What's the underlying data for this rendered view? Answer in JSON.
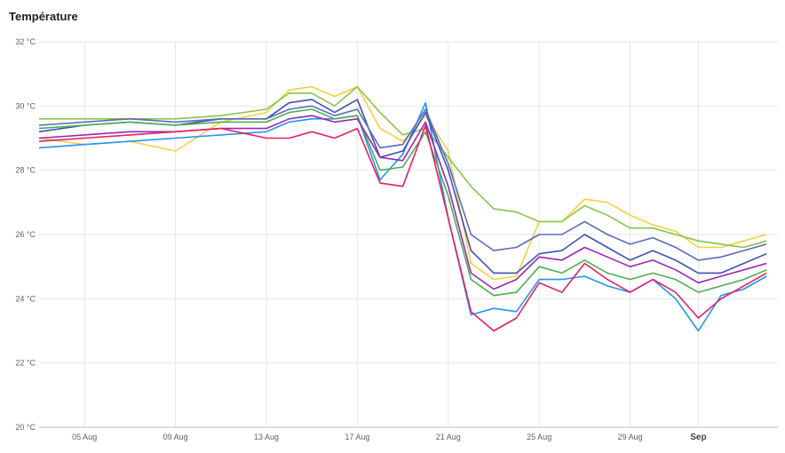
{
  "chart_data": {
    "type": "line",
    "title": "Température",
    "xlabel": "",
    "ylabel": "",
    "ylim": [
      20,
      32
    ],
    "y_ticks": [
      "20 °C",
      "22 °C",
      "24 °C",
      "26 °C",
      "28 °C",
      "30 °C",
      "32 °C"
    ],
    "x_ticks": [
      {
        "label": "05 Aug",
        "day": 5
      },
      {
        "label": "09 Aug",
        "day": 9
      },
      {
        "label": "13 Aug",
        "day": 13
      },
      {
        "label": "17 Aug",
        "day": 17
      },
      {
        "label": "21 Aug",
        "day": 21
      },
      {
        "label": "25 Aug",
        "day": 25
      },
      {
        "label": "29 Aug",
        "day": 29
      },
      {
        "label": "Sep",
        "day": 32,
        "bold": true
      }
    ],
    "xlim_days": [
      3.0,
      35.5
    ],
    "grid": true,
    "series": [
      {
        "color": "#f4d03f",
        "x": [
          3,
          5,
          7,
          9,
          11,
          13,
          14,
          15,
          16,
          17,
          18,
          19,
          20,
          21,
          22,
          23,
          24,
          25,
          26,
          27,
          28,
          29,
          30,
          31,
          32,
          33,
          34,
          35
        ],
        "y": [
          29.0,
          28.8,
          28.9,
          28.6,
          29.5,
          29.8,
          30.5,
          30.6,
          30.3,
          30.6,
          29.3,
          28.9,
          29.7,
          28.6,
          25.1,
          24.6,
          24.7,
          26.4,
          26.4,
          27.1,
          27.0,
          26.6,
          26.3,
          26.1,
          25.6,
          25.6,
          25.8,
          26.0
        ]
      },
      {
        "color": "#8bc34a",
        "x": [
          3,
          5,
          7,
          9,
          11,
          13,
          14,
          15,
          16,
          17,
          18,
          19,
          20,
          21,
          22,
          23,
          24,
          25,
          26,
          27,
          28,
          29,
          30,
          31,
          32,
          33,
          34,
          35
        ],
        "y": [
          29.6,
          29.6,
          29.6,
          29.6,
          29.7,
          29.9,
          30.4,
          30.4,
          30.0,
          30.6,
          29.8,
          29.1,
          29.3,
          28.4,
          27.5,
          26.8,
          26.7,
          26.4,
          26.4,
          26.9,
          26.6,
          26.2,
          26.2,
          26.0,
          25.8,
          25.7,
          25.6,
          25.8
        ]
      },
      {
        "color": "#2196f3",
        "x": [
          3,
          5,
          7,
          9,
          11,
          13,
          14,
          15,
          16,
          17,
          18,
          19,
          20,
          21,
          22,
          23,
          24,
          25,
          26,
          27,
          28,
          29,
          30,
          31,
          32,
          33,
          34,
          35
        ],
        "y": [
          28.7,
          28.8,
          28.9,
          29.0,
          29.1,
          29.2,
          29.5,
          29.6,
          29.6,
          29.7,
          27.7,
          28.5,
          30.1,
          26.5,
          23.5,
          23.7,
          23.6,
          24.6,
          24.6,
          24.7,
          24.4,
          24.2,
          24.6,
          24.0,
          23.0,
          24.1,
          24.3,
          24.7
        ]
      },
      {
        "color": "#3f51b5",
        "x": [
          3,
          5,
          7,
          9,
          11,
          13,
          14,
          15,
          16,
          17,
          18,
          19,
          20,
          21,
          22,
          23,
          24,
          25,
          26,
          27,
          28,
          29,
          30,
          31,
          32,
          33,
          34,
          35
        ],
        "y": [
          29.2,
          29.4,
          29.5,
          29.4,
          29.6,
          29.6,
          30.1,
          30.2,
          29.8,
          30.2,
          28.4,
          28.6,
          29.8,
          28.0,
          25.5,
          24.8,
          24.8,
          25.4,
          25.5,
          26.0,
          25.6,
          25.2,
          25.5,
          25.2,
          24.8,
          24.8,
          25.1,
          25.4
        ]
      },
      {
        "color": "#4caf50",
        "x": [
          3,
          5,
          7,
          9,
          11,
          13,
          14,
          15,
          16,
          17,
          18,
          19,
          20,
          21,
          22,
          23,
          24,
          25,
          26,
          27,
          28,
          29,
          30,
          31,
          32,
          33,
          34,
          35
        ],
        "y": [
          29.3,
          29.4,
          29.5,
          29.4,
          29.5,
          29.5,
          29.8,
          29.9,
          29.6,
          29.7,
          28.0,
          28.1,
          29.2,
          27.2,
          24.6,
          24.1,
          24.2,
          25.0,
          24.8,
          25.2,
          24.8,
          24.6,
          24.8,
          24.6,
          24.2,
          24.4,
          24.6,
          24.9
        ]
      },
      {
        "color": "#9c27b0",
        "x": [
          3,
          5,
          7,
          9,
          11,
          13,
          14,
          15,
          16,
          17,
          18,
          19,
          20,
          21,
          22,
          23,
          24,
          25,
          26,
          27,
          28,
          29,
          30,
          31,
          32,
          33,
          34,
          35
        ],
        "y": [
          29.0,
          29.1,
          29.2,
          29.2,
          29.3,
          29.3,
          29.6,
          29.7,
          29.5,
          29.6,
          28.4,
          28.3,
          29.5,
          27.5,
          24.8,
          24.3,
          24.6,
          25.3,
          25.2,
          25.6,
          25.3,
          25.0,
          25.2,
          24.9,
          24.5,
          24.7,
          24.9,
          25.1
        ]
      },
      {
        "color": "#e91e63",
        "x": [
          3,
          5,
          7,
          9,
          11,
          13,
          14,
          15,
          16,
          17,
          18,
          19,
          20,
          21,
          22,
          23,
          24,
          25,
          26,
          27,
          28,
          29,
          30,
          31,
          32,
          33,
          34,
          35
        ],
        "y": [
          28.9,
          29.0,
          29.1,
          29.2,
          29.3,
          29.0,
          29.0,
          29.2,
          29.0,
          29.3,
          27.6,
          27.5,
          29.4,
          26.5,
          23.6,
          23.0,
          23.4,
          24.5,
          24.2,
          25.1,
          24.6,
          24.2,
          24.6,
          24.2,
          23.4,
          24.0,
          24.4,
          24.8
        ]
      },
      {
        "color": "#5c6bc0",
        "x": [
          3,
          5,
          7,
          9,
          11,
          13,
          14,
          15,
          16,
          17,
          18,
          19,
          20,
          21,
          22,
          23,
          24,
          25,
          26,
          27,
          28,
          29,
          30,
          31,
          32,
          33,
          34,
          35
        ],
        "y": [
          29.4,
          29.5,
          29.6,
          29.5,
          29.6,
          29.6,
          29.9,
          30.0,
          29.7,
          29.9,
          28.7,
          28.8,
          29.9,
          28.2,
          26.0,
          25.5,
          25.6,
          26.0,
          26.0,
          26.4,
          26.0,
          25.7,
          25.9,
          25.6,
          25.2,
          25.3,
          25.5,
          25.7
        ]
      }
    ]
  }
}
